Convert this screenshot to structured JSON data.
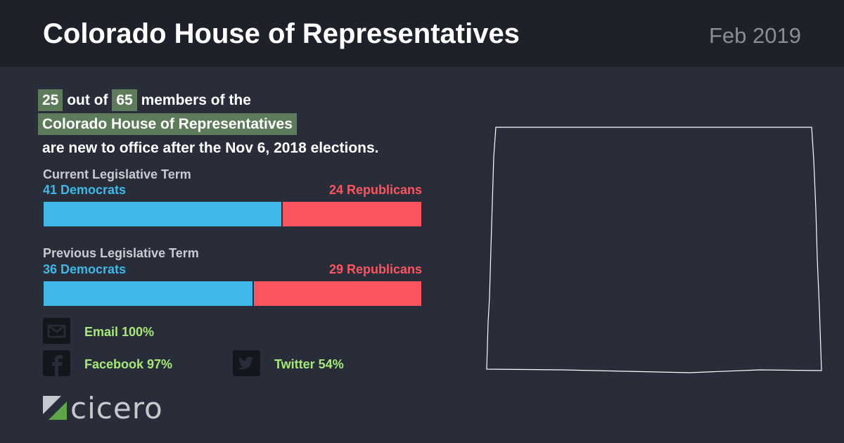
{
  "header": {
    "title": "Colorado House of Representatives",
    "date": "Feb 2019"
  },
  "summary": {
    "new_count": "25",
    "out_of": "out of",
    "total_count": "65",
    "members_of_the": "members of the",
    "body_name": "Colorado House of Representatives",
    "suffix": "are new to office after the Nov 6, 2018 elections."
  },
  "current_term": {
    "label": "Current Legislative Term",
    "democrats_label": "41 Democrats",
    "republicans_label": "24 Republicans",
    "democrats": 41,
    "republicans": 24
  },
  "previous_term": {
    "label": "Previous Legislative Term",
    "democrats_label": "36 Democrats",
    "republicans_label": "29 Republicans",
    "democrats": 36,
    "republicans": 29
  },
  "social": {
    "email": {
      "label": "Email 100%",
      "icon": "email-icon"
    },
    "facebook": {
      "label": "Facebook 97%",
      "icon": "facebook-icon"
    },
    "twitter": {
      "label": "Twitter 54%",
      "icon": "twitter-icon"
    }
  },
  "logo": {
    "text": "cicero"
  },
  "colors": {
    "democrat": "#41b9e8",
    "republican": "#fb5560",
    "highlight": "#5d7a5a",
    "social_text": "#a7e879"
  }
}
